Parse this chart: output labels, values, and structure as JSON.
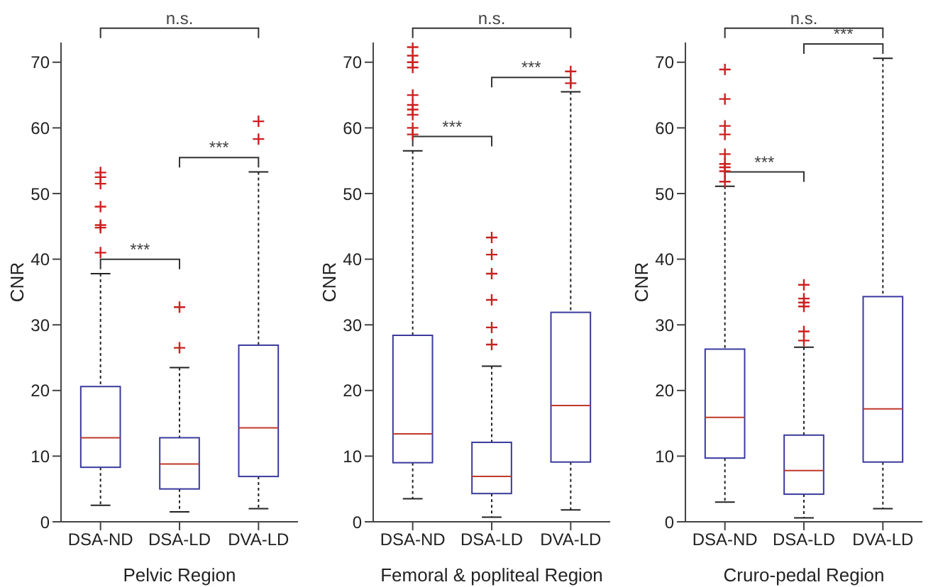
{
  "chart_data": [
    {
      "type": "box",
      "xlabel": "Pelvic Region",
      "ylabel": "CNR",
      "categories": [
        "DSA-ND",
        "DSA-LD",
        "DVA-LD"
      ],
      "ylim": [
        0,
        73
      ],
      "yticks": [
        0,
        10,
        20,
        30,
        40,
        50,
        60,
        70
      ],
      "series": [
        {
          "color": "#3a3a9e",
          "boxes": [
            {
              "low": 2.5,
              "q1": 8.3,
              "median": 12.8,
              "q3": 20.6,
              "high": 37.8,
              "outliers": [
                41,
                44.8,
                45.2,
                48,
                51.5,
                52.5,
                53.2
              ]
            },
            {
              "low": 1.5,
              "q1": 5,
              "median": 8.8,
              "q3": 12.8,
              "high": 23.5,
              "outliers": [
                26.5,
                32.7
              ]
            },
            {
              "low": 2,
              "q1": 6.9,
              "median": 14.3,
              "q3": 26.9,
              "high": 53.3,
              "outliers": [
                58.3,
                61
              ]
            }
          ]
        }
      ],
      "annotations": [
        "n.s.",
        "***",
        "***"
      ]
    },
    {
      "type": "box",
      "xlabel": "Femoral & popliteal Region",
      "ylabel": "CNR",
      "categories": [
        "DSA-ND",
        "DSA-LD",
        "DVA-LD"
      ],
      "ylim": [
        0,
        73
      ],
      "yticks": [
        0,
        10,
        20,
        30,
        40,
        50,
        60,
        70
      ],
      "series": [
        {
          "color": "#3a3a9e",
          "boxes": [
            {
              "low": 3.5,
              "q1": 9,
              "median": 13.4,
              "q3": 28.4,
              "high": 56.5,
              "outliers": [
                59,
                60,
                62,
                62.8,
                63.5,
                65,
                69.2,
                70,
                71,
                72.3
              ]
            },
            {
              "low": 0.7,
              "q1": 4.3,
              "median": 6.9,
              "q3": 12.1,
              "high": 23.7,
              "outliers": [
                27,
                29.6,
                33.8,
                37.8,
                40.7,
                43.3
              ]
            },
            {
              "low": 1.8,
              "q1": 9.1,
              "median": 17.7,
              "q3": 31.9,
              "high": 65.5,
              "outliers": [
                66.8,
                68.6
              ]
            }
          ]
        }
      ],
      "annotations": [
        "n.s.",
        "***",
        "***"
      ]
    },
    {
      "type": "box",
      "xlabel": "Cruro-pedal Region",
      "ylabel": "CNR",
      "categories": [
        "DSA-ND",
        "DSA-LD",
        "DVA-LD"
      ],
      "ylim": [
        0,
        73
      ],
      "yticks": [
        0,
        10,
        20,
        30,
        40,
        50,
        60,
        70
      ],
      "series": [
        {
          "color": "#3a3a9e",
          "boxes": [
            {
              "low": 3,
              "q1": 9.7,
              "median": 15.9,
              "q3": 26.3,
              "high": 51.1,
              "outliers": [
                51.8,
                53.4,
                54,
                54.5,
                56,
                59,
                60.3,
                64.4,
                68.9
              ]
            },
            {
              "low": 0.6,
              "q1": 4.2,
              "median": 7.8,
              "q3": 13.2,
              "high": 26.6,
              "outliers": [
                27.6,
                29,
                32.8,
                33.4,
                34,
                36.1
              ]
            },
            {
              "low": 2,
              "q1": 9.1,
              "median": 17.2,
              "q3": 34.3,
              "high": 70.6
            }
          ]
        }
      ],
      "annotations": [
        "n.s.",
        "***",
        "***"
      ]
    }
  ]
}
